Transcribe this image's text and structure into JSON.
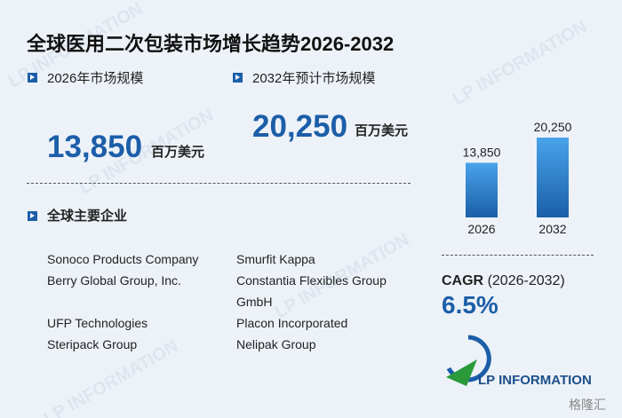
{
  "title": "全球医用二次包装市场增长趋势2026-2032",
  "market_2026": {
    "label": "2026年市场规模",
    "value": "13,850",
    "unit": "百万美元"
  },
  "market_2032": {
    "label": "2032年预计市场规模",
    "value": "20,250",
    "unit": "百万美元"
  },
  "companies": {
    "heading": "全球主要企业",
    "rows": [
      [
        "Sonoco Products Company",
        "Smurfit Kappa"
      ],
      [
        "Berry Global Group, Inc.",
        "Constantia Flexibles Group GmbH"
      ],
      [
        "UFP Technologies",
        "Placon Incorporated"
      ],
      [
        "Steripack Group",
        "Nelipak Group"
      ]
    ]
  },
  "cagr": {
    "label": "CAGR",
    "period": "(2026-2032)",
    "value": "6.5%"
  },
  "logo": "LP INFORMATION",
  "watermark": "格隆汇",
  "chart_data": {
    "type": "bar",
    "categories": [
      "2026",
      "2032"
    ],
    "values": [
      13850,
      20250
    ],
    "value_labels": [
      "13,850",
      "20,250"
    ],
    "color": "#1f6fc0"
  }
}
